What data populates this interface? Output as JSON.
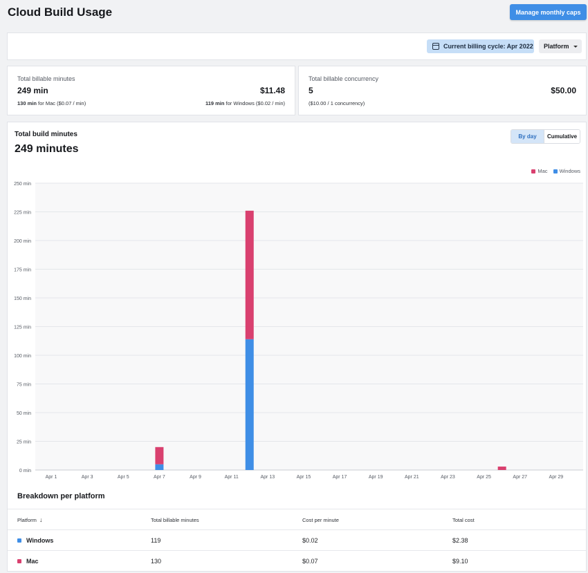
{
  "header": {
    "title": "Cloud Build Usage",
    "manage_label": "Manage monthly caps"
  },
  "filters": {
    "billing_cycle": "Current billing cycle: Apr 2022",
    "platform": "Platform"
  },
  "stats": {
    "minutes": {
      "label": "Total billable minutes",
      "value": "249 min",
      "amount": "$11.48",
      "mac_min": "130 min",
      "mac_text": " for Mac ($0.07 / min)",
      "win_min": "119 min",
      "win_text": " for Windows ($0.02 / min)"
    },
    "concurrency": {
      "label": "Total billable concurrency",
      "value": "5",
      "amount": "$50.00",
      "sub": "($10.00 / 1 concurrency)"
    }
  },
  "chart": {
    "title": "Total build minutes",
    "total": "249 minutes",
    "toggle": {
      "by_day": "By day",
      "cumulative": "Cumulative"
    },
    "legend": {
      "mac": "Mac",
      "windows": "Windows"
    },
    "colors": {
      "mac": "#d9406f",
      "windows": "#3f8ee6"
    }
  },
  "chart_data": {
    "type": "bar",
    "stacked": true,
    "categories": [
      "Apr 1",
      "Apr 2",
      "Apr 3",
      "Apr 4",
      "Apr 5",
      "Apr 6",
      "Apr 7",
      "Apr 8",
      "Apr 9",
      "Apr 10",
      "Apr 11",
      "Apr 12",
      "Apr 13",
      "Apr 14",
      "Apr 15",
      "Apr 16",
      "Apr 17",
      "Apr 18",
      "Apr 19",
      "Apr 20",
      "Apr 21",
      "Apr 22",
      "Apr 23",
      "Apr 24",
      "Apr 25",
      "Apr 26",
      "Apr 27",
      "Apr 28",
      "Apr 29",
      "Apr 30"
    ],
    "x_tick_labels": [
      "Apr 1",
      "Apr 3",
      "Apr 5",
      "Apr 7",
      "Apr 9",
      "Apr 11",
      "Apr 13",
      "Apr 15",
      "Apr 17",
      "Apr 19",
      "Apr 21",
      "Apr 23",
      "Apr 25",
      "Apr 27",
      "Apr 29"
    ],
    "series": [
      {
        "name": "Windows",
        "values": [
          0,
          0,
          0,
          0,
          0,
          0,
          5,
          0,
          0,
          0,
          0,
          114,
          0,
          0,
          0,
          0,
          0,
          0,
          0,
          0,
          0,
          0,
          0,
          0,
          0,
          0,
          0,
          0,
          0,
          0
        ]
      },
      {
        "name": "Mac",
        "values": [
          0,
          0,
          0,
          0,
          0,
          0,
          15,
          0,
          0,
          0,
          0,
          112,
          0,
          0,
          0,
          0,
          0,
          0,
          0,
          0,
          0,
          0,
          0,
          0,
          0,
          3,
          0,
          0,
          0,
          0
        ]
      }
    ],
    "y_ticks": [
      "0 min",
      "25 min",
      "50 min",
      "75 min",
      "100 min",
      "125 min",
      "150 min",
      "175 min",
      "200 min",
      "225 min",
      "250 min"
    ],
    "ylim": [
      0,
      250
    ],
    "grid": true,
    "legend": "top-right"
  },
  "breakdown": {
    "title": "Breakdown per platform",
    "headers": {
      "platform": "Platform",
      "minutes": "Total billable minutes",
      "cost_per_minute": "Cost per minute",
      "total_cost": "Total cost"
    },
    "rows": [
      {
        "platform": "Windows",
        "minutes": "119",
        "cost_per_minute": "$0.02",
        "total_cost": "$2.38",
        "color": "#3f8ee6"
      },
      {
        "platform": "Mac",
        "minutes": "130",
        "cost_per_minute": "$0.07",
        "total_cost": "$9.10",
        "color": "#d9406f"
      }
    ]
  }
}
